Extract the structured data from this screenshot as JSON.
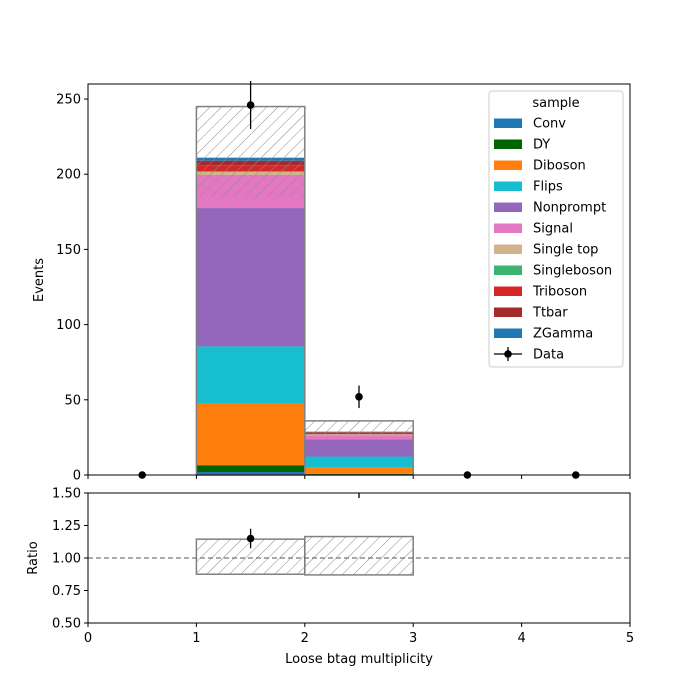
{
  "chart_data": {
    "type": "bar",
    "stacked": true,
    "xlabel": "Loose btag multiplicity",
    "ylabel_top": "Events",
    "ylabel_bottom": "Ratio",
    "xlim": [
      0,
      5
    ],
    "ylim_top": [
      0,
      260
    ],
    "ylim_bottom": [
      0.5,
      1.5
    ],
    "x_ticks": [
      "0",
      "1",
      "2",
      "3",
      "4",
      "5"
    ],
    "y_ticks_top": [
      "0",
      "50",
      "100",
      "150",
      "200",
      "250"
    ],
    "y_ticks_bottom": [
      "0.50",
      "0.75",
      "1.00",
      "1.25",
      "1.50"
    ],
    "bin_edges": [
      0,
      1,
      2,
      3,
      4,
      5
    ],
    "legend_title": "sample",
    "legend_position": "top-right",
    "series": [
      {
        "name": "Conv",
        "color": "#1f77b4",
        "values": [
          0,
          2,
          0.3,
          0,
          0
        ]
      },
      {
        "name": "DY",
        "color": "#006400",
        "values": [
          0,
          4.5,
          0.5,
          0,
          0
        ]
      },
      {
        "name": "Diboson",
        "color": "#ff7f0e",
        "values": [
          0,
          41,
          4,
          0,
          0
        ]
      },
      {
        "name": "Flips",
        "color": "#17becf",
        "values": [
          0,
          38,
          7.5,
          0,
          0
        ]
      },
      {
        "name": "Nonprompt",
        "color": "#9467bd",
        "values": [
          0,
          92,
          11.5,
          0,
          0
        ]
      },
      {
        "name": "Signal",
        "color": "#e377c2",
        "values": [
          0,
          22,
          2.5,
          0,
          0
        ]
      },
      {
        "name": "Single top",
        "color": "#d2b48c",
        "values": [
          0,
          2,
          0.7,
          0,
          0
        ]
      },
      {
        "name": "Singleboson",
        "color": "#3cb371",
        "values": [
          0,
          0.5,
          0.1,
          0,
          0
        ]
      },
      {
        "name": "Triboson",
        "color": "#d62728",
        "values": [
          0,
          4,
          0.9,
          0,
          0
        ]
      },
      {
        "name": "Ttbar",
        "color": "#a52a2a",
        "values": [
          0,
          3,
          0.5,
          0,
          0
        ]
      },
      {
        "name": "ZGamma",
        "color": "#1f77b4",
        "values": [
          0,
          2,
          0.3,
          0,
          0
        ]
      }
    ],
    "uncertainty_band": {
      "low": [
        0,
        185,
        27,
        0,
        0
      ],
      "high": [
        0,
        245,
        36,
        0,
        0
      ]
    },
    "data": {
      "name": "Data",
      "x": [
        0.5,
        1.5,
        2.5,
        3.5,
        4.5
      ],
      "y": [
        0,
        246,
        52,
        0,
        0
      ],
      "err": [
        0,
        16,
        7.5,
        0,
        0
      ]
    },
    "ratio": {
      "reference": 1.0,
      "band_low": [
        null,
        0.875,
        0.87,
        null,
        null
      ],
      "band_high": [
        null,
        1.145,
        1.165,
        null,
        null
      ],
      "points_x": [
        1.5
      ],
      "points_y": [
        1.15
      ],
      "points_err": [
        0.075
      ],
      "offscale_x": [
        2.5
      ]
    }
  }
}
